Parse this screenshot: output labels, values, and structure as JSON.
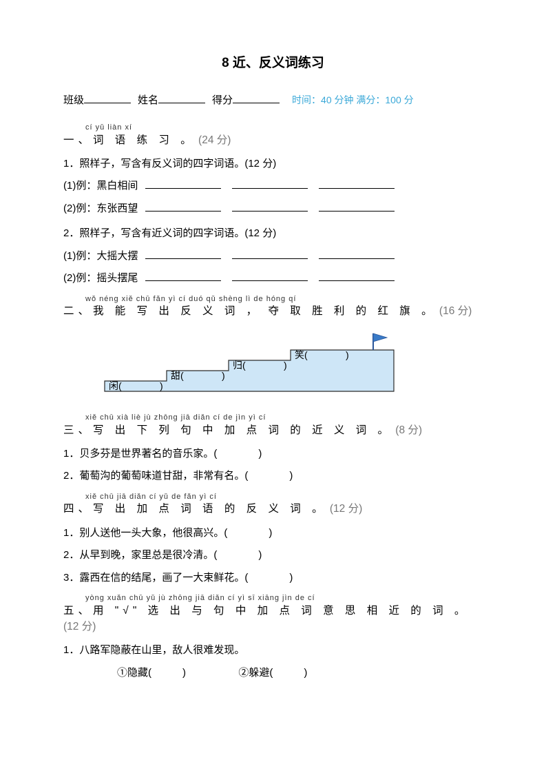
{
  "title": "8 近、反义词练习",
  "header": {
    "class_label": "班级",
    "name_label": "姓名",
    "score_label": "得分",
    "time_note": "时间：40 分钟 满分：100 分"
  },
  "s1": {
    "pinyin": "cí yǔ liàn xí",
    "head": "一、词 语 练 习 。",
    "points": "(24 分)",
    "q1": "1．照样子，写含有反义词的四字词语。(12 分)",
    "q1a": "(1)例：黑白相间",
    "q1b": "(2)例：东张西望",
    "q2": "2．照样子，写含有近义词的四字词语。(12 分)",
    "q2a": "(1)例：大摇大摆",
    "q2b": "(2)例：摇头摆尾"
  },
  "s2": {
    "pinyin": "wǒ néng xiě chū fǎn yì cí    duó qǔ shèng lì  de hóng qí",
    "head_a": "二、我 能 写 出 反 义 词 ， 夺 取  胜 利 的 红 旗 。",
    "points": "(16 分)",
    "stairs": {
      "labels": [
        "闲(",
        "甜(",
        "归(",
        "笑("
      ],
      "fill": "#cee6f7",
      "stroke": "#2a2a2a",
      "font_size": 14
    }
  },
  "s3": {
    "pinyin": "xiě chū xià liè jù zhōng jiā diǎn cí  de jìn yì cí",
    "head": "三、写 出 下 列 句  中  加 点 词 的 近 义 词 。",
    "points": "(8 分)",
    "q1": "1．贝多芬是世界著名的音乐家。(　　　　)",
    "q2": "2．葡萄沟的葡萄味道甘甜，非常有名。(　　　　)"
  },
  "s4": {
    "pinyin": "xiě chū jiā diǎn cí yǔ de fǎn yì cí",
    "head": "四、写 出 加 点 词 语 的 反 义 词 。",
    "points": "(12 分)",
    "q1": "1．别人送他一头大象，他很高兴。(　　　　)",
    "q2": "2．从早到晚，家里总是很冷清。(　　　　)",
    "q3": "3．露西在信的结尾，画了一大束鲜花。(　　　　)"
  },
  "s5": {
    "pinyin": "yòng        xuǎn chū yǔ jù zhōng jiā diǎn cí yì sī xiāng jìn de cí",
    "head": "五、用 \"√\" 选 出 与 句  中 加 点 词 意 思 相 近 的 词 。",
    "points": "(12 分)",
    "q1": "1．八路军隐蔽在山里，敌人很难发现。",
    "opt1": "①隐藏(　　　)",
    "opt2": "②躲避(　　　)"
  }
}
